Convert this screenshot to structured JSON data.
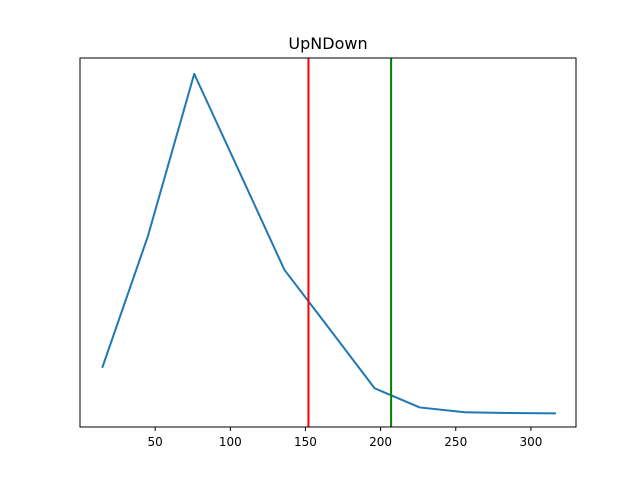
{
  "chart_data": {
    "type": "line",
    "title": "UpNDown",
    "xlabel": "",
    "ylabel": "",
    "xlim": [
      0,
      330
    ],
    "ylim": [
      0,
      100
    ],
    "x_ticks": [
      50,
      100,
      150,
      200,
      250,
      300
    ],
    "y_ticks_visible": false,
    "grid": false,
    "series": [
      {
        "color": "#1f77b4",
        "x": [
          15,
          45,
          76,
          106,
          136,
          166,
          196,
          226,
          256,
          286,
          316
        ],
        "y": [
          16.3,
          51.5,
          95.7,
          69.2,
          42.6,
          26.6,
          10.5,
          5.3,
          4.0,
          3.8,
          3.7
        ]
      }
    ],
    "vlines": [
      {
        "x": 152,
        "color": "#ff0000"
      },
      {
        "x": 207,
        "color": "#008000"
      }
    ]
  }
}
